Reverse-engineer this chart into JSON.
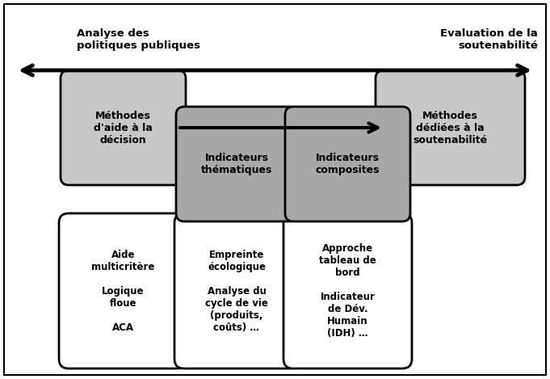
{
  "fig_width": 6.81,
  "fig_height": 4.69,
  "dpi": 100,
  "bg_color": "#ffffff",
  "border_color": "#000000",
  "light_gray": "#c8c8c8",
  "dark_gray": "#a8a8a8",
  "white": "#ffffff",
  "top_left_label": "Analyse des\npolitiques publiques",
  "top_right_label": "Evaluation de la\nsoutenabilité",
  "box1_text": "Méthodes\nd'aide à la\ndécision",
  "box2_text": "Indicateurs\nthématiques",
  "box3_text": "Indicateurs\ncomposites",
  "box4_text": "Méthodes\ndédiées à la\nsoutenabilité",
  "box5_text": "Aide\nmulticritère\n\nLogique\nfloue\n\nACA",
  "box6_text": "Empreinte\nécologique\n\nAnalyse du\ncycle de vie\n(produits,\ncoûts) …",
  "box7_text": "Approche\ntableau de\nbord\n\nIndicateur\nde Dév.\nHumain\n(IDH) …"
}
